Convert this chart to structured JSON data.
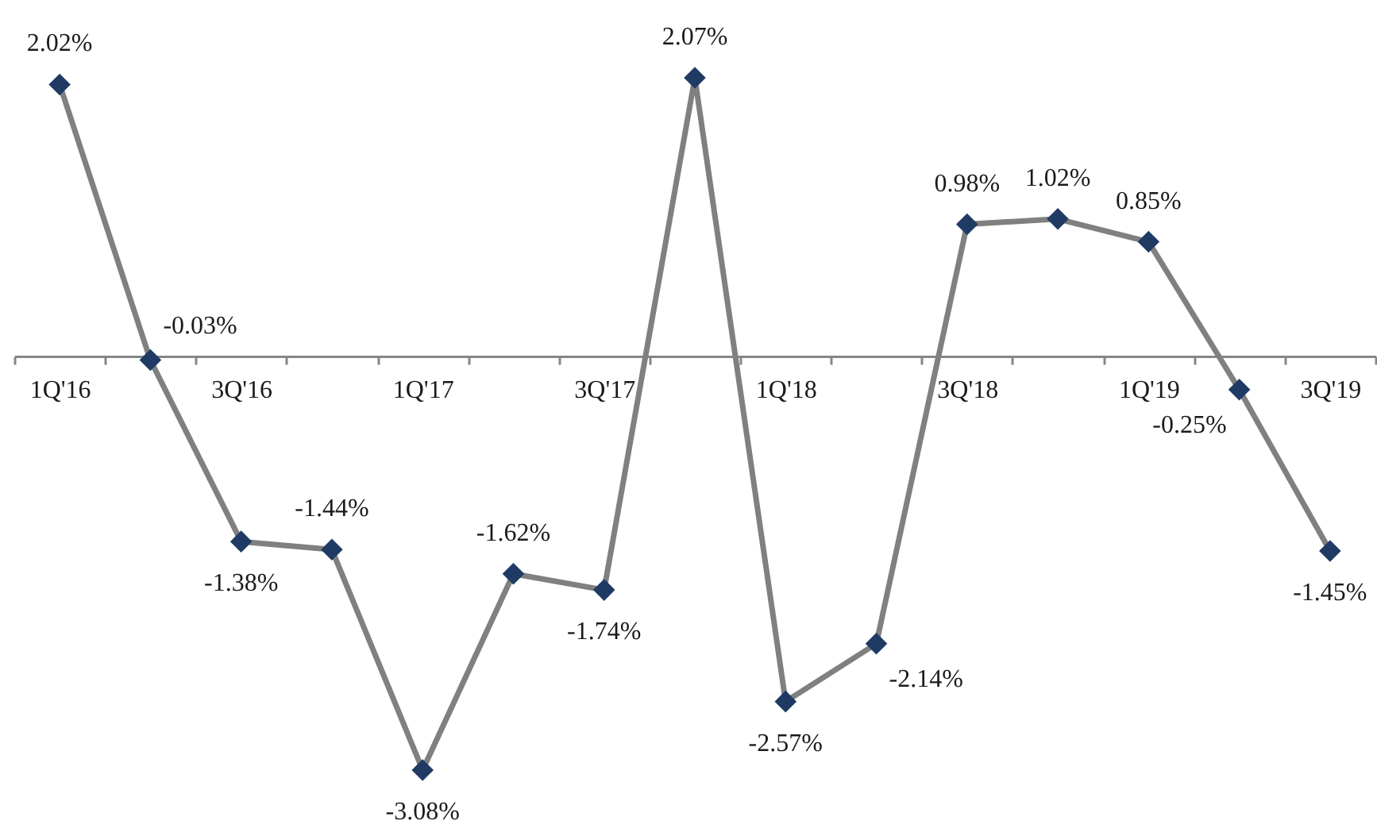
{
  "chart_data": {
    "type": "line",
    "categories": [
      "1Q'16",
      null,
      "3Q'16",
      null,
      "1Q'17",
      null,
      "3Q'17",
      null,
      "1Q'18",
      null,
      "3Q'18",
      null,
      "1Q'19",
      null,
      "3Q'19"
    ],
    "series": [
      {
        "color": "#808080",
        "colors": [
          "#1f3b64",
          "#1f3b64",
          "#1f3b64",
          "#1f3b64",
          "#1f3b64",
          "#1f3b64",
          "#1f3b64",
          "#1f3b64",
          "#1f3b64",
          "#1f3b64",
          "#1f3b64",
          "#1f3b64",
          "#1f3b64",
          "#1f3b64",
          "#1f3b64"
        ],
        "values": [
          2.02,
          -0.03,
          -1.38,
          -1.44,
          -3.08,
          -1.62,
          -1.74,
          2.07,
          -2.57,
          -2.14,
          0.98,
          1.02,
          0.85,
          -0.25,
          -1.45
        ],
        "value_labels": [
          "2.02%",
          "-0.03%",
          "-1.38%",
          "-1.44%",
          "-3.08%",
          "-1.62%",
          "-1.74%",
          "2.07%",
          "-2.57%",
          "-2.14%",
          "0.98%",
          "1.02%",
          "0.85%",
          "-0.25%",
          "-1.45%"
        ]
      }
    ],
    "marker": "diamond",
    "line_style": "solid"
  }
}
